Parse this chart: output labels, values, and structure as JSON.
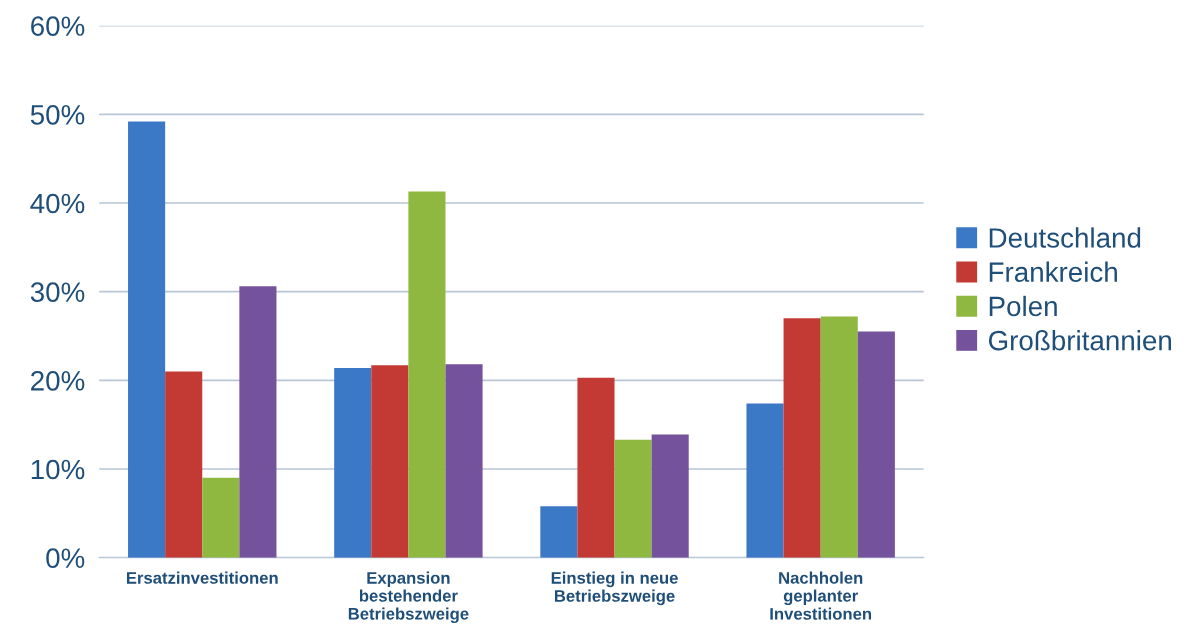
{
  "chart_data": {
    "type": "bar",
    "categories": [
      "Ersatzinvestitionen",
      "Expansion\nbestehender\nBetriebszweige",
      "Einstieg in neue\nBetriebszweige",
      "Nachholen\ngeplanter\nInvestitionen"
    ],
    "series": [
      {
        "name": "Deutschland",
        "color": "#3b78c6",
        "values": [
          49.2,
          21.4,
          5.8,
          17.4
        ]
      },
      {
        "name": "Frankreich",
        "color": "#c23a33",
        "values": [
          21.0,
          21.7,
          20.3,
          27.0
        ]
      },
      {
        "name": "Polen",
        "color": "#8fb841",
        "values": [
          9.0,
          41.3,
          13.3,
          27.2
        ]
      },
      {
        "name": "Großbritannien",
        "color": "#75529c",
        "values": [
          30.6,
          21.8,
          13.9,
          25.5
        ]
      }
    ],
    "ylim": [
      0,
      60
    ],
    "yticks": [
      {
        "value": 0,
        "label": "0%"
      },
      {
        "value": 10,
        "label": "10%"
      },
      {
        "value": 20,
        "label": "20%"
      },
      {
        "value": 30,
        "label": "30%"
      },
      {
        "value": 40,
        "label": "40%"
      },
      {
        "value": 50,
        "label": "50%"
      },
      {
        "value": 60,
        "label": "60%"
      }
    ],
    "grid": "y",
    "legend": "right"
  }
}
